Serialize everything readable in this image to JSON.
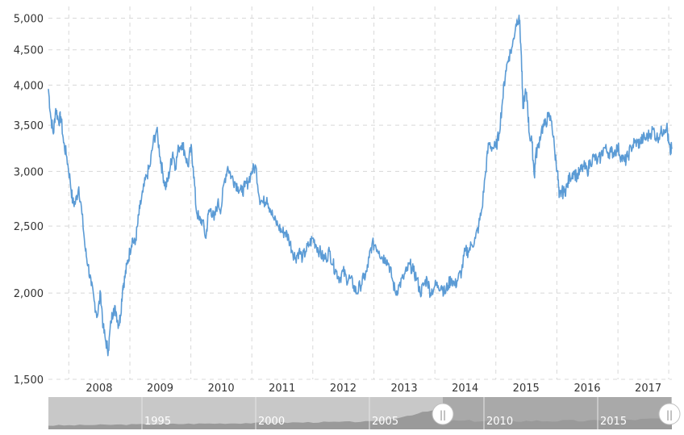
{
  "chart_data": {
    "type": "line",
    "title": "",
    "xlabel": "",
    "ylabel": "",
    "y_scale": "log",
    "ylim": [
      1500,
      5200
    ],
    "x_range": [
      "2007-09-01",
      "2017-11-20"
    ],
    "yticks": [
      1500,
      2000,
      2500,
      3000,
      3500,
      4000,
      4500,
      5000
    ],
    "ytick_labels": [
      "1,500",
      "2,000",
      "2,500",
      "3,000",
      "3,500",
      "4,000",
      "4,500",
      "5,000"
    ],
    "xtick_labels": [
      "2008",
      "2009",
      "2010",
      "2011",
      "2012",
      "2013",
      "2014",
      "2015",
      "2016",
      "2017"
    ],
    "grid": true,
    "line_color": "#5b9bd5",
    "series": [
      {
        "x": [
          "2007-09-01",
          "2007-09-15",
          "2007-10-01",
          "2007-10-15",
          "2007-11-01",
          "2007-11-15",
          "2007-12-01",
          "2007-12-20",
          "2008-01-10",
          "2008-01-25",
          "2008-02-10",
          "2008-03-01",
          "2008-03-20",
          "2008-04-10",
          "2008-04-25",
          "2008-05-15",
          "2008-06-01",
          "2008-06-20",
          "2008-07-10",
          "2008-07-25",
          "2008-08-10",
          "2008-08-25",
          "2008-09-10",
          "2008-09-25",
          "2008-10-10",
          "2008-10-25",
          "2008-11-05",
          "2008-11-20",
          "2008-12-01",
          "2008-12-15",
          "2009-01-01",
          "2009-01-15",
          "2009-02-01",
          "2009-02-15",
          "2009-03-01",
          "2009-03-20",
          "2009-04-10",
          "2009-05-01",
          "2009-05-20",
          "2009-06-10",
          "2009-07-01",
          "2009-07-15",
          "2009-08-01",
          "2009-08-15",
          "2009-08-31",
          "2009-09-15",
          "2009-10-01",
          "2009-10-20",
          "2009-11-10",
          "2009-11-25",
          "2009-12-15",
          "2010-01-01",
          "2010-01-15",
          "2010-02-01",
          "2010-02-20",
          "2010-03-10",
          "2010-04-01",
          "2010-04-15",
          "2010-05-01",
          "2010-05-20",
          "2010-06-10",
          "2010-07-01",
          "2010-07-20",
          "2010-08-10",
          "2010-09-01",
          "2010-09-20",
          "2010-10-10",
          "2010-11-01",
          "2010-11-20",
          "2010-12-10",
          "2011-01-01",
          "2011-01-25",
          "2011-02-15",
          "2011-03-10",
          "2011-04-01",
          "2011-04-20",
          "2011-05-15",
          "2011-06-10",
          "2011-07-01",
          "2011-07-20",
          "2011-08-10",
          "2011-09-01",
          "2011-09-20",
          "2011-10-10",
          "2011-11-01",
          "2011-11-20",
          "2011-12-10",
          "2012-01-01",
          "2012-01-20",
          "2012-02-10",
          "2012-03-01",
          "2012-03-20",
          "2012-04-10",
          "2012-05-01",
          "2012-05-20",
          "2012-06-10",
          "2012-07-01",
          "2012-07-20",
          "2012-08-10",
          "2012-09-01",
          "2012-09-20",
          "2012-10-10",
          "2012-11-01",
          "2012-11-20",
          "2012-12-04",
          "2012-12-20",
          "2013-01-10",
          "2013-02-01",
          "2013-02-20",
          "2013-03-10",
          "2013-04-01",
          "2013-04-20",
          "2013-05-10",
          "2013-06-01",
          "2013-06-25",
          "2013-07-15",
          "2013-08-05",
          "2013-08-25",
          "2013-09-15",
          "2013-10-05",
          "2013-10-25",
          "2013-11-15",
          "2013-12-05",
          "2014-01-01",
          "2014-01-20",
          "2014-02-10",
          "2014-03-01",
          "2014-03-20",
          "2014-04-10",
          "2014-05-01",
          "2014-05-20",
          "2014-06-10",
          "2014-07-01",
          "2014-07-20",
          "2014-08-10",
          "2014-09-01",
          "2014-09-20",
          "2014-10-10",
          "2014-11-01",
          "2014-11-20",
          "2014-12-10",
          "2015-01-01",
          "2015-01-20",
          "2015-02-10",
          "2015-03-01",
          "2015-03-20",
          "2015-04-10",
          "2015-05-01",
          "2015-05-20",
          "2015-06-01",
          "2015-06-12",
          "2015-06-25",
          "2015-07-08",
          "2015-07-20",
          "2015-08-05",
          "2015-08-20",
          "2015-08-26",
          "2015-09-10",
          "2015-10-01",
          "2015-10-20",
          "2015-11-10",
          "2015-12-01",
          "2015-12-20",
          "2016-01-05",
          "2016-01-15",
          "2016-01-28",
          "2016-02-15",
          "2016-03-01",
          "2016-03-20",
          "2016-04-10",
          "2016-05-01",
          "2016-05-20",
          "2016-06-10",
          "2016-07-01",
          "2016-07-20",
          "2016-08-10",
          "2016-09-01",
          "2016-09-20",
          "2016-10-10",
          "2016-11-01",
          "2016-11-20",
          "2016-12-10",
          "2017-01-01",
          "2017-01-20",
          "2017-02-10",
          "2017-03-01",
          "2017-03-20",
          "2017-04-10",
          "2017-05-01",
          "2017-05-11",
          "2017-06-01",
          "2017-06-20",
          "2017-07-10",
          "2017-08-01",
          "2017-08-20",
          "2017-09-10",
          "2017-10-01",
          "2017-10-20",
          "2017-10-31",
          "2017-11-10",
          "2017-11-20"
        ],
        "values": [
          3950,
          3600,
          3400,
          3700,
          3550,
          3600,
          3300,
          3150,
          2900,
          2700,
          2700,
          2850,
          2600,
          2300,
          2200,
          2050,
          1950,
          1850,
          2000,
          1780,
          1700,
          1650,
          1820,
          1900,
          1880,
          1800,
          1850,
          2050,
          2100,
          2200,
          2300,
          2400,
          2350,
          2500,
          2650,
          2800,
          2950,
          3050,
          3300,
          3450,
          3150,
          3000,
          2850,
          2900,
          3050,
          3200,
          3050,
          3250,
          3300,
          3200,
          3050,
          3250,
          3050,
          2650,
          2550,
          2550,
          2400,
          2600,
          2650,
          2550,
          2700,
          2650,
          2900,
          3050,
          2950,
          2900,
          2850,
          2800,
          2850,
          2900,
          3000,
          3050,
          2750,
          2700,
          2750,
          2650,
          2550,
          2500,
          2450,
          2450,
          2400,
          2300,
          2250,
          2300,
          2250,
          2300,
          2350,
          2400,
          2350,
          2300,
          2250,
          2250,
          2300,
          2200,
          2150,
          2100,
          2150,
          2100,
          2100,
          2050,
          2000,
          2050,
          2100,
          2150,
          2250,
          2350,
          2350,
          2300,
          2250,
          2250,
          2200,
          2100,
          2000,
          2050,
          2100,
          2150,
          2200,
          2150,
          2100,
          2000,
          2050,
          2100,
          2000,
          2050,
          2050,
          2050,
          2000,
          2050,
          2100,
          2050,
          2100,
          2150,
          2300,
          2300,
          2350,
          2400,
          2500,
          2650,
          3000,
          3300,
          3250,
          3250,
          3400,
          3800,
          4200,
          4400,
          4550,
          4900,
          5050,
          4500,
          3700,
          3900,
          3800,
          3400,
          3300,
          2950,
          3150,
          3250,
          3450,
          3500,
          3600,
          3550,
          3200,
          3000,
          2750,
          2800,
          2800,
          2850,
          2950,
          3000,
          2950,
          3000,
          3050,
          3000,
          3100,
          3150,
          3100,
          3150,
          3250,
          3200,
          3200,
          3200,
          3250,
          3150,
          3100,
          3150,
          3250,
          3300,
          3300,
          3300,
          3350,
          3350,
          3400,
          3450,
          3350,
          3400,
          3450,
          3500,
          3300,
          3200,
          3250
        ]
      }
    ]
  },
  "navigator": {
    "labels": [
      "1995",
      "2000",
      "2005",
      "2010",
      "2015"
    ],
    "grip_symbol": "||"
  }
}
